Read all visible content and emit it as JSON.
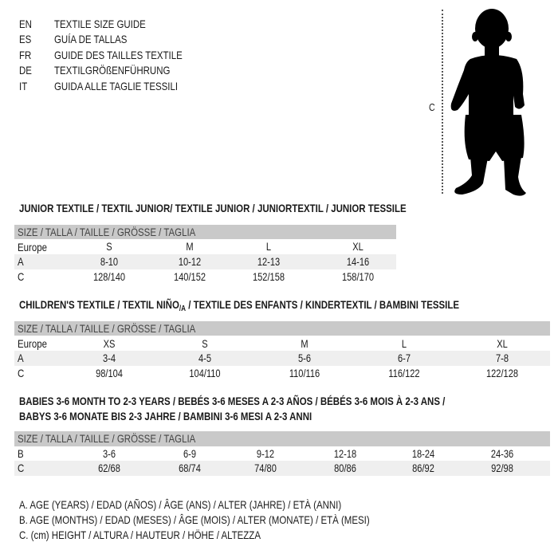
{
  "languages": [
    {
      "code": "EN",
      "title": "TEXTILE SIZE GUIDE"
    },
    {
      "code": "ES",
      "title": "GUÍA DE TALLAS"
    },
    {
      "code": "FR",
      "title": "GUIDE DES TAILLES TEXTILE"
    },
    {
      "code": "DE",
      "title": "TEXTILGRÖßENFÜHRUNG"
    },
    {
      "code": "IT",
      "title": "GUIDA ALLE TAGLIE TESSILI"
    }
  ],
  "figure": {
    "height_label": "C",
    "icon": "child-silhouette"
  },
  "junior": {
    "title": "JUNIOR TEXTILE / TEXTIL JUNIOR/ TEXTILE JUNIOR / JUNIORTEXTIL / JUNIOR TESSILE",
    "header": "SIZE / TALLA / TAILLE / GRÖSSE / TAGLIA",
    "rows": [
      {
        "label": "Europe",
        "values": [
          "S",
          "M",
          "L",
          "XL"
        ]
      },
      {
        "label": "A",
        "values": [
          "8-10",
          "10-12",
          "12-13",
          "14-16"
        ]
      },
      {
        "label": "C",
        "values": [
          "128/140",
          "140/152",
          "152/158",
          "158/170"
        ]
      }
    ]
  },
  "children": {
    "title": "CHILDREN'S TEXTILE / TEXTIL NIÑO",
    "title_sub": "/A",
    "title_rest": " / TEXTILE DES ENFANTS / KINDERTEXTIL / BAMBINI TESSILE",
    "header": "SIZE / TALLA / TAILLE / GRÖSSE / TAGLIA",
    "rows": [
      {
        "label": "Europe",
        "values": [
          "XS",
          "S",
          "M",
          "L",
          "XL"
        ]
      },
      {
        "label": "A",
        "values": [
          "3-4",
          "4-5",
          "5-6",
          "6-7",
          "7-8"
        ]
      },
      {
        "label": "C",
        "values": [
          "98/104",
          "104/110",
          "110/116",
          "116/122",
          "122/128"
        ]
      }
    ]
  },
  "babies": {
    "title_line1": "BABIES 3-6 MONTH TO 2-3 YEARS / BEBÉS 3-6 MESES A 2-3 AÑOS / BÉBÉS 3-6 MOIS À 2-3 ANS /",
    "title_line2": "BABYS 3-6 MONATE BIS 2-3 JAHRE / BAMBINI 3-6 MESI A 2-3 ANNI",
    "header": "SIZE / TALLA / TAILLE / GRÖSSE / TAGLIA",
    "rows": [
      {
        "label": "B",
        "values": [
          "3-6",
          "6-9",
          "9-12",
          "12-18",
          "18-24",
          "24-36"
        ]
      },
      {
        "label": "C",
        "values": [
          "62/68",
          "68/74",
          "74/80",
          "80/86",
          "86/92",
          "92/98"
        ]
      }
    ]
  },
  "legend": [
    "A. AGE (YEARS) / EDAD (AÑOS) / ÂGE (ANS) / ALTER (JAHRE) / ETÀ (ANNI)",
    "B. AGE (MONTHS) / EDAD (MESES) / ÂGE (MOIS) / ALTER (MONATE) / ETÀ (MESI)",
    "C. (cm) HEIGHT / ALTURA / HAUTEUR / HÖHE / ALTEZZA"
  ],
  "colors": {
    "header_bar": "#c9c9c9",
    "row_shade": "#efefef",
    "text": "#1a1a1a"
  }
}
